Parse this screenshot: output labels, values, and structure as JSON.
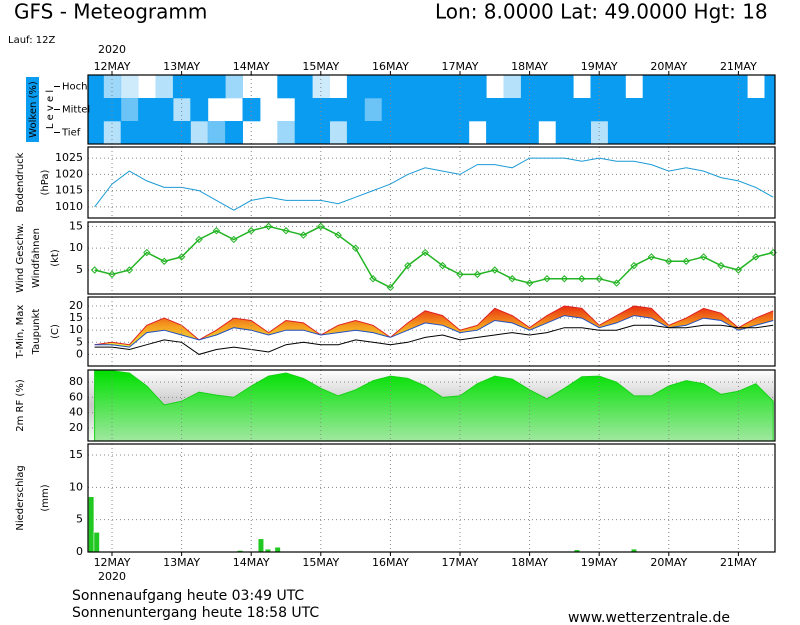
{
  "header": {
    "title": "GFS - Meteogramm",
    "location": "Lon: 8.0000  Lat: 49.0000  Hgt: 18",
    "run": "Lauf: 12Z"
  },
  "chart_data": [
    {
      "type": "cloud-levels",
      "ylabel": "Wolken (%)",
      "level_label": "L e v e l",
      "x_year": "2020",
      "xlim": [
        -0.345,
        9.526
      ],
      "xticks": [
        {
          "value": 0,
          "label": "12MAY"
        },
        {
          "value": 1,
          "label": "13MAY"
        },
        {
          "value": 2,
          "label": "14MAY"
        },
        {
          "value": 3,
          "label": "15MAY"
        },
        {
          "value": 4,
          "label": "16MAY"
        },
        {
          "value": 5,
          "label": "17MAY"
        },
        {
          "value": 6,
          "label": "18MAY"
        },
        {
          "value": 7,
          "label": "19MAY"
        },
        {
          "value": 8,
          "label": "20MAY"
        },
        {
          "value": 9,
          "label": "21MAY"
        }
      ],
      "x": [
        -0.25,
        0,
        0.25,
        0.5,
        0.75,
        1,
        1.25,
        1.5,
        1.75,
        2,
        2.25,
        2.5,
        2.75,
        3,
        3.25,
        3.5,
        3.75,
        4,
        4.25,
        4.5,
        4.75,
        5,
        5.25,
        5.5,
        5.75,
        6,
        6.25,
        6.5,
        6.75,
        7,
        7.25,
        7.5,
        7.75,
        8,
        8.25,
        8.5,
        8.75,
        9,
        9.25,
        9.5
      ],
      "series": [
        {
          "name": "Hoch",
          "color": "#0a9cf0",
          "values": [
            100,
            40,
            20,
            0,
            30,
            100,
            100,
            100,
            40,
            0,
            0,
            100,
            100,
            20,
            0,
            100,
            100,
            100,
            100,
            100,
            100,
            100,
            100,
            0,
            30,
            100,
            100,
            100,
            0,
            100,
            100,
            0,
            100,
            100,
            100,
            100,
            100,
            100,
            0,
            100
          ]
        },
        {
          "name": "Mittel",
          "color": "#0a9cf0",
          "values": [
            100,
            100,
            60,
            100,
            100,
            30,
            100,
            0,
            0,
            100,
            0,
            0,
            100,
            100,
            100,
            100,
            60,
            100,
            100,
            100,
            100,
            100,
            100,
            100,
            100,
            100,
            100,
            100,
            100,
            100,
            100,
            100,
            100,
            100,
            100,
            100,
            100,
            100,
            100,
            100
          ]
        },
        {
          "name": "Tief",
          "color": "#0a9cf0",
          "values": [
            100,
            30,
            100,
            100,
            100,
            100,
            30,
            60,
            100,
            0,
            0,
            40,
            100,
            100,
            30,
            100,
            100,
            100,
            100,
            100,
            100,
            100,
            0,
            100,
            100,
            100,
            0,
            100,
            100,
            30,
            100,
            100,
            100,
            100,
            100,
            100,
            100,
            100,
            100,
            100
          ]
        }
      ]
    },
    {
      "type": "line",
      "ylabel": "Bodendruck",
      "unit": "(hPa)",
      "ylabel_color": "#000000",
      "color": "#1a9ad6",
      "grid": true,
      "ylim": [
        1006.6,
        1028.4
      ],
      "yticks": [
        1010,
        1015,
        1020,
        1025
      ],
      "x": [
        -0.25,
        0,
        0.25,
        0.5,
        0.75,
        1,
        1.25,
        1.5,
        1.75,
        2,
        2.25,
        2.5,
        2.75,
        3,
        3.25,
        3.5,
        3.75,
        4,
        4.25,
        4.5,
        4.75,
        5,
        5.25,
        5.5,
        5.75,
        6,
        6.25,
        6.5,
        6.75,
        7,
        7.25,
        7.5,
        7.75,
        8,
        8.25,
        8.5,
        8.75,
        9,
        9.25,
        9.5
      ],
      "values": [
        1010,
        1017,
        1021,
        1018,
        1016,
        1016,
        1015,
        1012,
        1009,
        1012,
        1013,
        1012,
        1012,
        1012,
        1011,
        1013,
        1015,
        1017,
        1020,
        1022,
        1021,
        1020,
        1023,
        1023,
        1022,
        1025,
        1025,
        1025,
        1024,
        1025,
        1024,
        1024,
        1023,
        1021,
        1022,
        1021,
        1019,
        1018,
        1016,
        1013
      ]
    },
    {
      "type": "line",
      "ylabel": "Wind Geschw.",
      "ylabel2": "Windfahnen",
      "unit": "(kt)",
      "ylabel_color": "#00a000",
      "color": "#22b422",
      "markers": true,
      "grid": true,
      "ylim": [
        -0.5,
        16
      ],
      "yticks": [
        5,
        10,
        15
      ],
      "x": [
        -0.25,
        0,
        0.25,
        0.5,
        0.75,
        1,
        1.25,
        1.5,
        1.75,
        2,
        2.25,
        2.5,
        2.75,
        3,
        3.25,
        3.5,
        3.75,
        4,
        4.25,
        4.5,
        4.75,
        5,
        5.25,
        5.5,
        5.75,
        6,
        6.25,
        6.5,
        6.75,
        7,
        7.25,
        7.5,
        7.75,
        8,
        8.25,
        8.5,
        8.75,
        9,
        9.25,
        9.5
      ],
      "values": [
        5,
        4,
        5,
        9,
        7,
        8,
        12,
        14,
        12,
        14,
        15,
        14,
        13,
        15,
        13,
        10,
        3,
        1,
        6,
        9,
        6,
        4,
        4,
        5,
        3,
        2,
        3,
        3,
        3,
        3,
        2,
        6,
        8,
        7,
        7,
        8,
        6,
        5,
        8,
        9
      ]
    },
    {
      "type": "band-line",
      "ylabel": "T-Min, Max",
      "ylabel2": "Taupunkt",
      "unit": "(C)",
      "ylabel_color": "#2040c0",
      "grid": true,
      "ylim": [
        -4.8,
        23.7
      ],
      "yticks": [
        0,
        5,
        10,
        15,
        20
      ],
      "x": [
        -0.25,
        0,
        0.25,
        0.5,
        0.75,
        1,
        1.25,
        1.5,
        1.75,
        2,
        2.25,
        2.5,
        2.75,
        3,
        3.25,
        3.5,
        3.75,
        4,
        4.25,
        4.5,
        4.75,
        5,
        5.25,
        5.5,
        5.75,
        6,
        6.25,
        6.5,
        6.75,
        7,
        7.25,
        7.5,
        7.75,
        8,
        8.25,
        8.5,
        8.75,
        9,
        9.25,
        9.5
      ],
      "series": [
        {
          "color": "#e02020",
          "values": [
            4,
            5,
            4,
            12,
            15,
            12,
            6,
            10,
            15,
            14,
            9,
            14,
            13,
            8,
            12,
            14,
            12,
            7,
            13,
            18,
            16,
            10,
            12,
            19,
            16,
            11,
            16,
            20,
            19,
            12,
            16,
            20,
            19,
            12,
            15,
            19,
            17,
            11,
            15,
            18
          ]
        },
        {
          "color": "#2050c0",
          "values": [
            4,
            4,
            3,
            9,
            10,
            8,
            6,
            8,
            11,
            10,
            8,
            10,
            10,
            8,
            9,
            10,
            9,
            7,
            10,
            13,
            12,
            9,
            10,
            14,
            13,
            10,
            13,
            16,
            15,
            11,
            13,
            16,
            15,
            11,
            12,
            15,
            14,
            10,
            12,
            14
          ]
        },
        {
          "color": "#000000",
          "values": [
            3,
            3,
            2,
            4,
            6,
            5,
            0,
            2,
            3,
            2,
            1,
            4,
            5,
            4,
            4,
            6,
            5,
            4,
            5,
            7,
            8,
            6,
            7,
            8,
            9,
            8,
            9,
            11,
            11,
            10,
            10,
            12,
            12,
            11,
            11,
            12,
            12,
            11,
            11,
            12
          ]
        }
      ]
    },
    {
      "type": "area",
      "ylabel": "2m RF (%)",
      "ylabel_color": "#00a000",
      "color": "#18d018",
      "grid": true,
      "ylim": [
        2.7,
        96
      ],
      "yticks": [
        20,
        40,
        60,
        80
      ],
      "x": [
        -0.25,
        0,
        0.25,
        0.5,
        0.75,
        1,
        1.25,
        1.5,
        1.75,
        2,
        2.25,
        2.5,
        2.75,
        3,
        3.25,
        3.5,
        3.75,
        4,
        4.25,
        4.5,
        4.75,
        5,
        5.25,
        5.5,
        5.75,
        6,
        6.25,
        6.5,
        6.75,
        7,
        7.25,
        7.5,
        7.75,
        8,
        8.25,
        8.5,
        8.75,
        9,
        9.25,
        9.5
      ],
      "values": [
        95,
        95,
        92,
        75,
        50,
        55,
        67,
        63,
        60,
        75,
        88,
        92,
        85,
        72,
        62,
        70,
        82,
        88,
        85,
        75,
        60,
        62,
        78,
        88,
        84,
        70,
        58,
        72,
        87,
        88,
        80,
        62,
        62,
        75,
        82,
        78,
        64,
        68,
        78,
        55
      ]
    },
    {
      "type": "bar",
      "ylabel": "Niederschlag",
      "unit": "(mm)",
      "ylabel_color": "#000000",
      "color": "#22c822",
      "grid": true,
      "ylim": [
        0,
        16.7
      ],
      "yticks": [
        0,
        5,
        10,
        15
      ],
      "x": [
        -0.3,
        -0.22,
        1.84,
        2.14,
        2.24,
        2.38,
        6.68,
        7.5
      ],
      "values": [
        8.5,
        3,
        0.2,
        2,
        0.4,
        0.7,
        0.3,
        0.4
      ]
    }
  ],
  "footer": {
    "sunrise": "Sonnenaufgang heute 03:49 UTC",
    "sunset": "Sonnenuntergang heute 18:58 UTC",
    "site": "www.wetterzentrale.de"
  }
}
